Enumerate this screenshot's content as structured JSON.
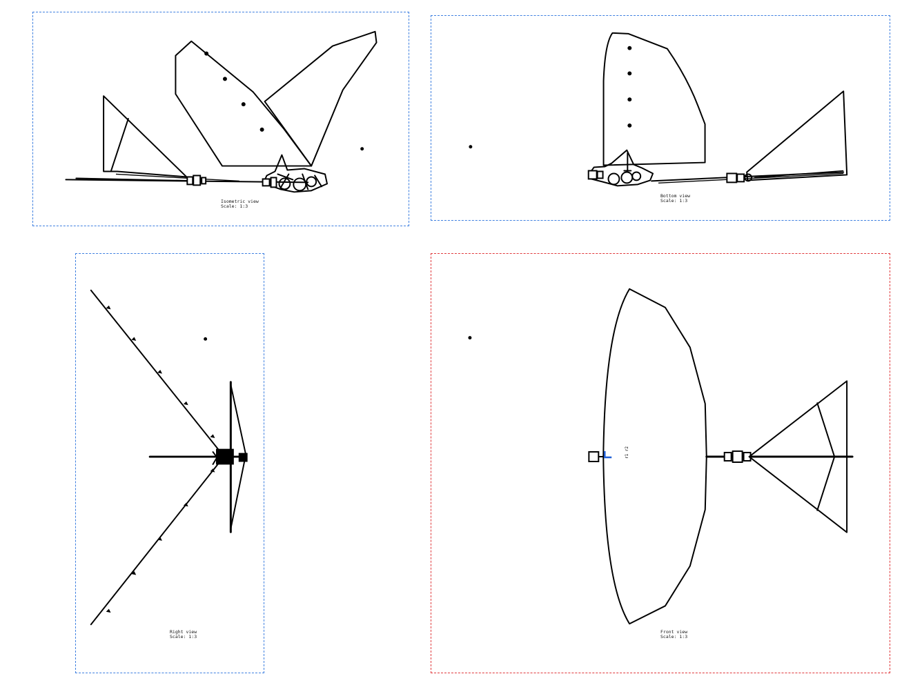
{
  "drawing": {
    "views": [
      {
        "id": "isometric",
        "name": "Isometric view",
        "scale": "Scale:  1:3",
        "active": false
      },
      {
        "id": "bottom",
        "name": "Bottom view",
        "scale": "Scale:  1:3",
        "active": false
      },
      {
        "id": "right",
        "name": "Right view",
        "scale": "Scale:  1:3",
        "active": false
      },
      {
        "id": "front",
        "name": "Front view",
        "scale": "Scale:  1:3",
        "active": true
      }
    ],
    "frame_colors": {
      "default": "#3d7fe0",
      "active": "#e0373a",
      "axis_marker": "#1f5fd6"
    },
    "front_dimension_text": "r1 r2"
  }
}
